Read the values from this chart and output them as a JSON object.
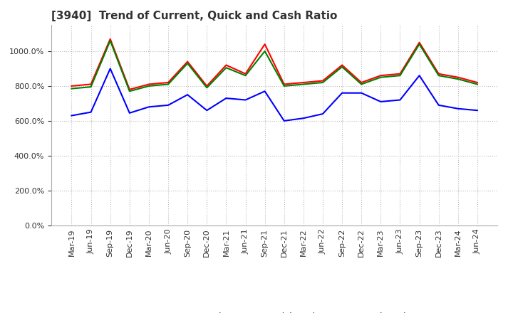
{
  "title": "[3940]  Trend of Current, Quick and Cash Ratio",
  "x_labels": [
    "Mar-19",
    "Jun-19",
    "Sep-19",
    "Dec-19",
    "Mar-20",
    "Jun-20",
    "Sep-20",
    "Dec-20",
    "Mar-21",
    "Jun-21",
    "Sep-21",
    "Dec-21",
    "Mar-22",
    "Jun-22",
    "Sep-22",
    "Dec-22",
    "Mar-23",
    "Jun-23",
    "Sep-23",
    "Dec-23",
    "Mar-24",
    "Jun-24"
  ],
  "current_ratio": [
    800,
    810,
    1070,
    780,
    810,
    820,
    940,
    800,
    920,
    870,
    1040,
    810,
    820,
    830,
    920,
    820,
    860,
    870,
    1050,
    870,
    850,
    820
  ],
  "quick_ratio": [
    785,
    795,
    1060,
    770,
    800,
    810,
    930,
    790,
    905,
    860,
    1000,
    800,
    810,
    820,
    910,
    810,
    850,
    860,
    1040,
    860,
    840,
    810
  ],
  "cash_ratio": [
    630,
    650,
    900,
    645,
    680,
    690,
    750,
    660,
    730,
    720,
    770,
    600,
    615,
    640,
    760,
    760,
    710,
    720,
    860,
    690,
    670,
    660
  ],
  "current_color": "#ff0000",
  "quick_color": "#008000",
  "cash_color": "#0000ff",
  "ylim_min": 0,
  "ylim_max": 1150,
  "yticks": [
    0,
    200,
    400,
    600,
    800,
    1000
  ],
  "background_color": "#ffffff",
  "grid_color": "#bbbbbb",
  "title_fontsize": 11,
  "tick_fontsize": 8,
  "legend_fontsize": 9
}
